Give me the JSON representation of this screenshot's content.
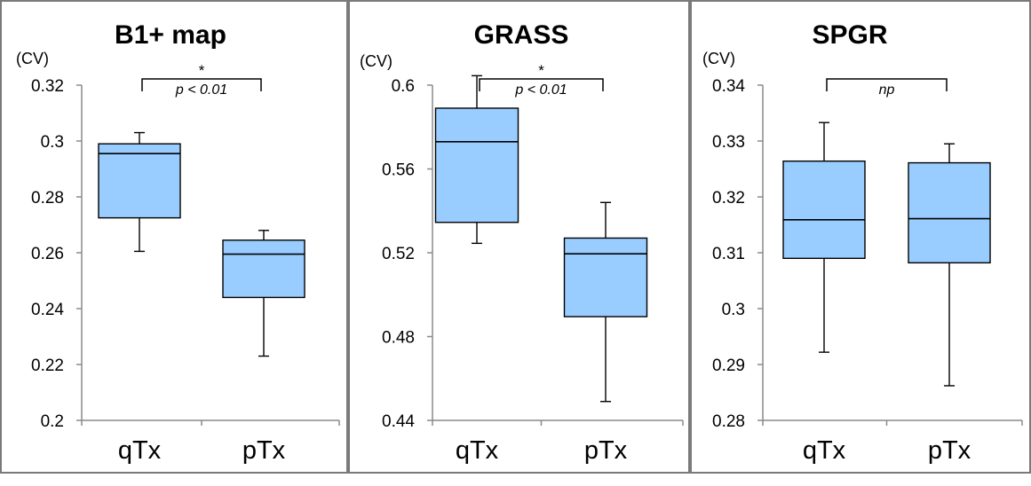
{
  "chart_data": [
    {
      "type": "box",
      "title": "B1+ map",
      "ylabel": "(CV)",
      "categories": [
        "qTx",
        "pTx"
      ],
      "ylim": [
        0.2,
        0.32
      ],
      "yticks": [
        0.2,
        0.22,
        0.24,
        0.26,
        0.28,
        0.3,
        0.32
      ],
      "ytick_labels": [
        "0.2",
        "0.22",
        "0.24",
        "0.26",
        "0.28",
        "0.3",
        "0.32"
      ],
      "boxes": [
        {
          "category": "qTx",
          "min": 0.2605,
          "q1": 0.2725,
          "median": 0.2955,
          "q3": 0.299,
          "max": 0.303
        },
        {
          "category": "pTx",
          "min": 0.223,
          "q1": 0.244,
          "median": 0.2595,
          "q3": 0.2645,
          "max": 0.268
        }
      ],
      "significance": {
        "star": "*",
        "text": "p < 0.01"
      },
      "colors": {
        "box_fill": "#99ccff",
        "box_edge": "#000000"
      }
    },
    {
      "type": "box",
      "title": "GRASS",
      "ylabel": "(CV)",
      "categories": [
        "qTx",
        "pTx"
      ],
      "ylim": [
        0.44,
        0.6
      ],
      "yticks": [
        0.44,
        0.48,
        0.52,
        0.56,
        0.6
      ],
      "ytick_labels": [
        "0.44",
        "0.48",
        "0.52",
        "0.56",
        "0.6"
      ],
      "boxes": [
        {
          "category": "qTx",
          "min": 0.5245,
          "q1": 0.5345,
          "median": 0.573,
          "q3": 0.589,
          "max": 0.6045
        },
        {
          "category": "pTx",
          "min": 0.449,
          "q1": 0.4895,
          "median": 0.5195,
          "q3": 0.527,
          "max": 0.544
        }
      ],
      "significance": {
        "star": "*",
        "text": "p < 0.01"
      },
      "colors": {
        "box_fill": "#99ccff",
        "box_edge": "#000000"
      }
    },
    {
      "type": "box",
      "title": "SPGR",
      "ylabel": "(CV)",
      "categories": [
        "qTx",
        "pTx"
      ],
      "ylim": [
        0.28,
        0.34
      ],
      "yticks": [
        0.28,
        0.29,
        0.3,
        0.31,
        0.32,
        0.33,
        0.34
      ],
      "ytick_labels": [
        "0.28",
        "0.29",
        "0.3",
        "0.31",
        "0.32",
        "0.33",
        "0.34"
      ],
      "boxes": [
        {
          "category": "qTx",
          "min": 0.2922,
          "q1": 0.309,
          "median": 0.3159,
          "q3": 0.3264,
          "max": 0.3333
        },
        {
          "category": "pTx",
          "min": 0.2862,
          "q1": 0.3082,
          "median": 0.3161,
          "q3": 0.3261,
          "max": 0.3295
        }
      ],
      "significance": {
        "star": "",
        "text": "np"
      },
      "colors": {
        "box_fill": "#99ccff",
        "box_edge": "#000000"
      }
    }
  ]
}
